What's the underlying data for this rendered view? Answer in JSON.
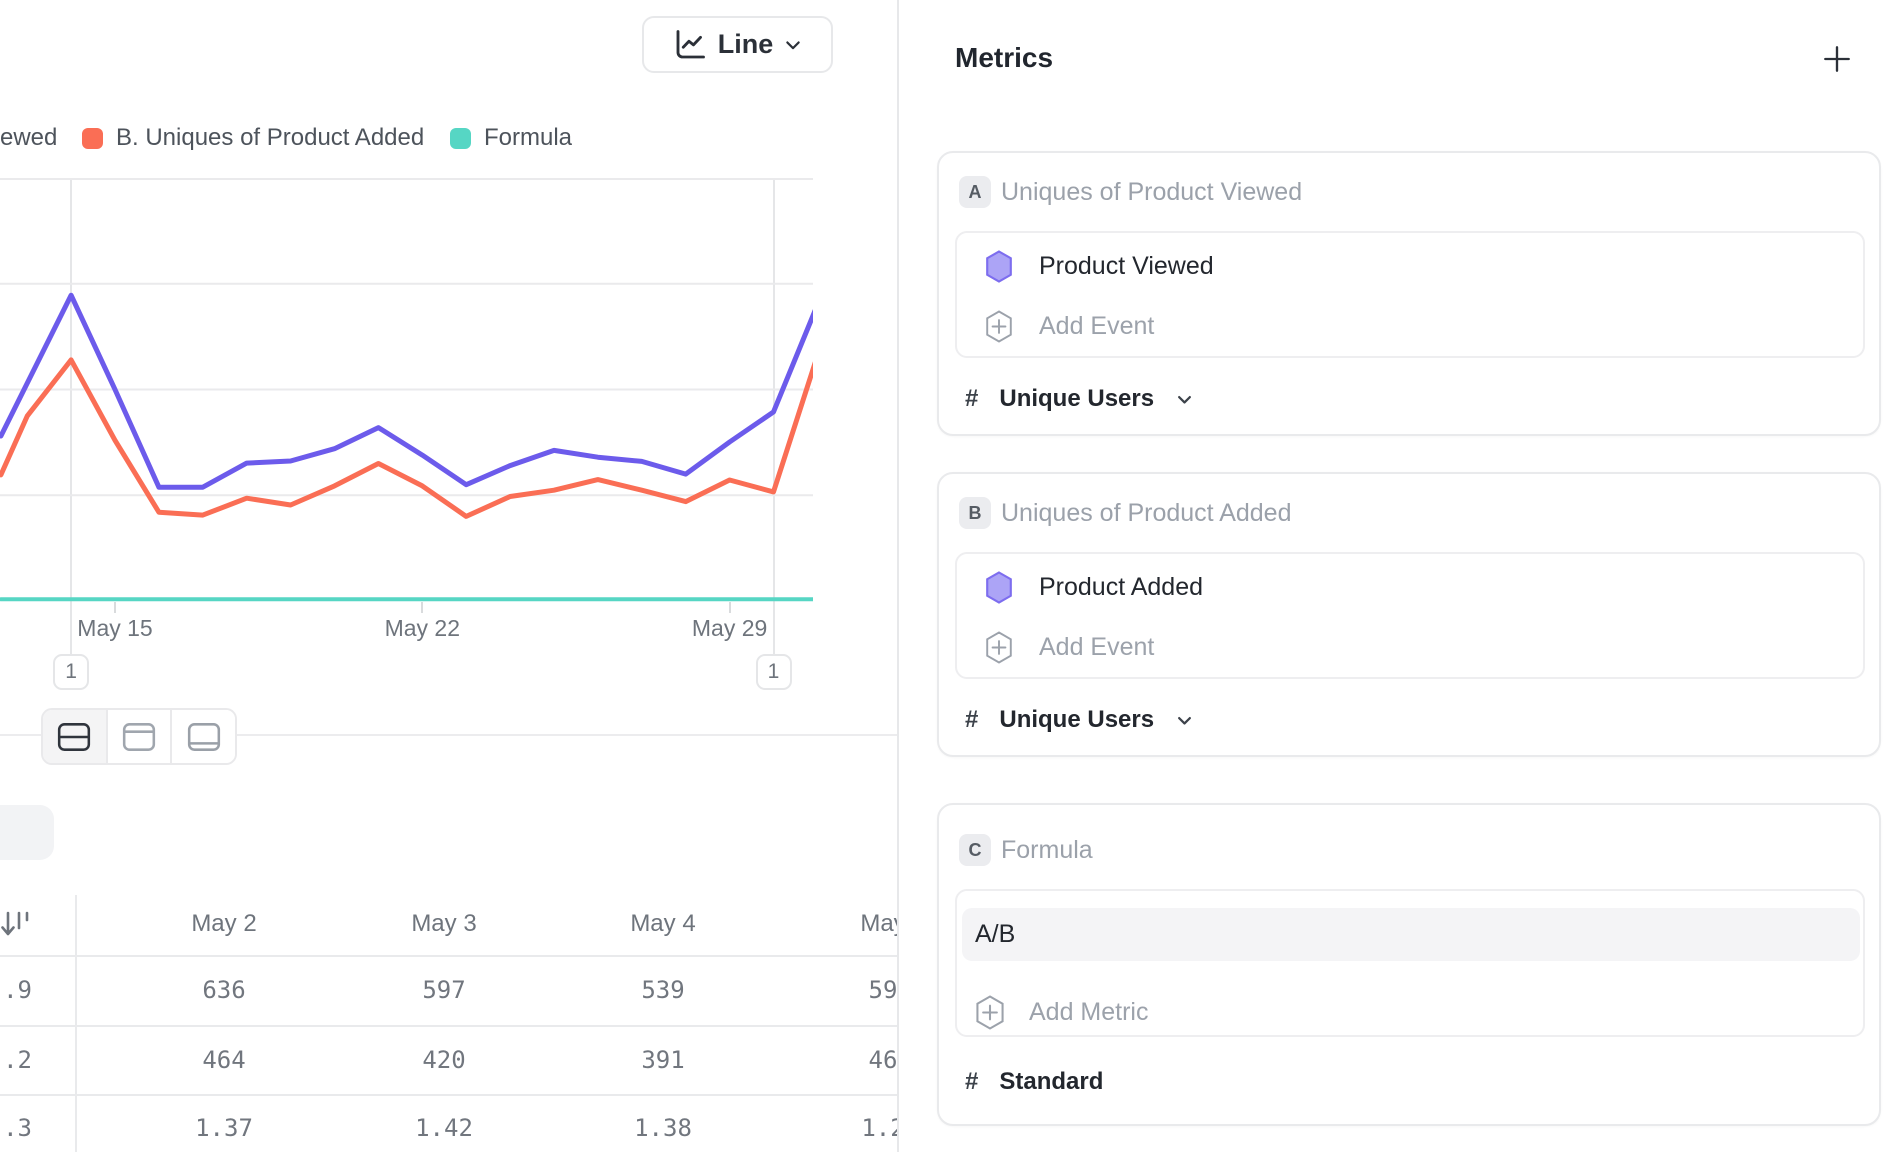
{
  "toolbar": {
    "chart_type_label": "Line"
  },
  "legend": {
    "clipped_label": "ewed",
    "items": [
      {
        "label": "B. Uniques of Product Added",
        "color": "#FA6E55"
      },
      {
        "label": "Formula",
        "color": "#56D6C4"
      }
    ]
  },
  "chart_data": {
    "type": "line",
    "title": "",
    "x_axis": {
      "tick_labels": [
        "May 15",
        "May 22",
        "May 29"
      ],
      "unit": "day",
      "window": [
        "May 12",
        "May 31"
      ]
    },
    "y_axis": {
      "labels_visible": false,
      "note": "y values below are fractions of plot height; numeric axis labels are cropped out of the screenshot"
    },
    "grid": true,
    "grid_divisions": 4,
    "annotations": [
      {
        "label": "1",
        "day": 14
      },
      {
        "label": "1",
        "day": 30
      }
    ],
    "series": [
      {
        "name": "A. Uniques of Product Viewed",
        "color": "#6C5BEB",
        "points": [
          [
            12.4,
            0.39
          ],
          [
            14,
            0.723
          ],
          [
            15,
            0.5
          ],
          [
            16,
            0.269
          ],
          [
            17,
            0.269
          ],
          [
            18,
            0.326
          ],
          [
            19,
            0.331
          ],
          [
            20,
            0.36
          ],
          [
            21,
            0.41
          ],
          [
            22,
            0.345
          ],
          [
            23,
            0.275
          ],
          [
            24,
            0.32
          ],
          [
            25,
            0.356
          ],
          [
            26,
            0.34
          ],
          [
            27,
            0.33
          ],
          [
            28,
            0.3
          ],
          [
            29,
            0.376
          ],
          [
            30,
            0.447
          ],
          [
            31,
            0.7
          ]
        ]
      },
      {
        "name": "B. Uniques of Product Added",
        "color": "#FA6E55",
        "points": [
          [
            12.4,
            0.298
          ],
          [
            13,
            0.437
          ],
          [
            14,
            0.57
          ],
          [
            15,
            0.38
          ],
          [
            16,
            0.21
          ],
          [
            17,
            0.203
          ],
          [
            18,
            0.243
          ],
          [
            19,
            0.227
          ],
          [
            20,
            0.272
          ],
          [
            21,
            0.325
          ],
          [
            22,
            0.272
          ],
          [
            23,
            0.2
          ],
          [
            24,
            0.247
          ],
          [
            25,
            0.262
          ],
          [
            26,
            0.287
          ],
          [
            27,
            0.262
          ],
          [
            28,
            0.235
          ],
          [
            29,
            0.286
          ],
          [
            30,
            0.258
          ],
          [
            31,
            0.58
          ]
        ]
      },
      {
        "name": "Formula",
        "color": "#56D6C4",
        "points": [
          [
            12.4,
            0.004
          ],
          [
            31,
            0.004
          ]
        ]
      }
    ]
  },
  "view_toggle": {
    "active_index": 0,
    "options": [
      {
        "icon": "split-horizontal-icon"
      },
      {
        "icon": "panel-top-icon"
      },
      {
        "icon": "panel-bottom-icon"
      }
    ]
  },
  "table": {
    "frozen_column": {
      "header_icon": "sort-descending-icon",
      "values": [
        ".9",
        ".2",
        ".3"
      ]
    },
    "columns": [
      "May 2",
      "May 3",
      "May 4",
      "May"
    ],
    "rows": [
      [
        "636",
        "597",
        "539",
        "59"
      ],
      [
        "464",
        "420",
        "391",
        "46"
      ],
      [
        "1.37",
        "1.42",
        "1.38",
        "1.2"
      ]
    ]
  },
  "metrics_panel": {
    "title": "Metrics",
    "cards": [
      {
        "badge": "A",
        "title": "Uniques of Product Viewed",
        "event_label": "Product Viewed",
        "add_label": "Add Event",
        "footer_prefix": "#",
        "footer_label": "Unique Users"
      },
      {
        "badge": "B",
        "title": "Uniques of Product Added",
        "event_label": "Product Added",
        "add_label": "Add Event",
        "footer_prefix": "#",
        "footer_label": "Unique Users"
      },
      {
        "badge": "C",
        "title": "Formula",
        "formula_value": "A/B",
        "add_label": "Add Metric",
        "footer_prefix": "#",
        "footer_label": "Standard"
      }
    ]
  },
  "theme": {
    "purple_line": "#6C5BEB",
    "coral_line": "#FA6E55",
    "teal_line": "#56D6C4",
    "hexagon_fill": "#ACA4F6",
    "hexagon_stroke": "#7D6DEF",
    "gridline": "#EAEAEC",
    "border": "#E9EAEC"
  }
}
